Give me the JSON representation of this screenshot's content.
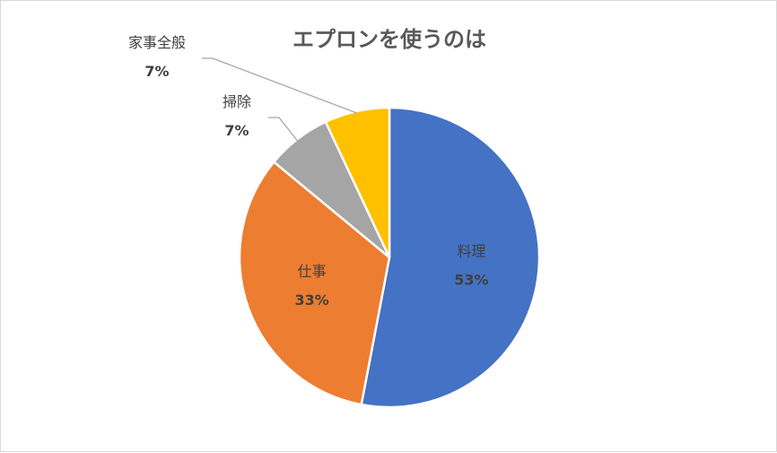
{
  "chart_data": {
    "type": "pie",
    "title": "エプロンを使うのは",
    "slices": [
      {
        "label": "料理",
        "value": 53,
        "percent_label": "53%",
        "color": "#4472C4"
      },
      {
        "label": "仕事",
        "value": 33,
        "percent_label": "33%",
        "color": "#ED7D31"
      },
      {
        "label": "掃除",
        "value": 7,
        "percent_label": "7%",
        "color": "#A5A5A5"
      },
      {
        "label": "家事全般",
        "value": 7,
        "percent_label": "7%",
        "color": "#FFC000"
      }
    ],
    "legend": "none",
    "data_labels": "category-and-percent"
  }
}
